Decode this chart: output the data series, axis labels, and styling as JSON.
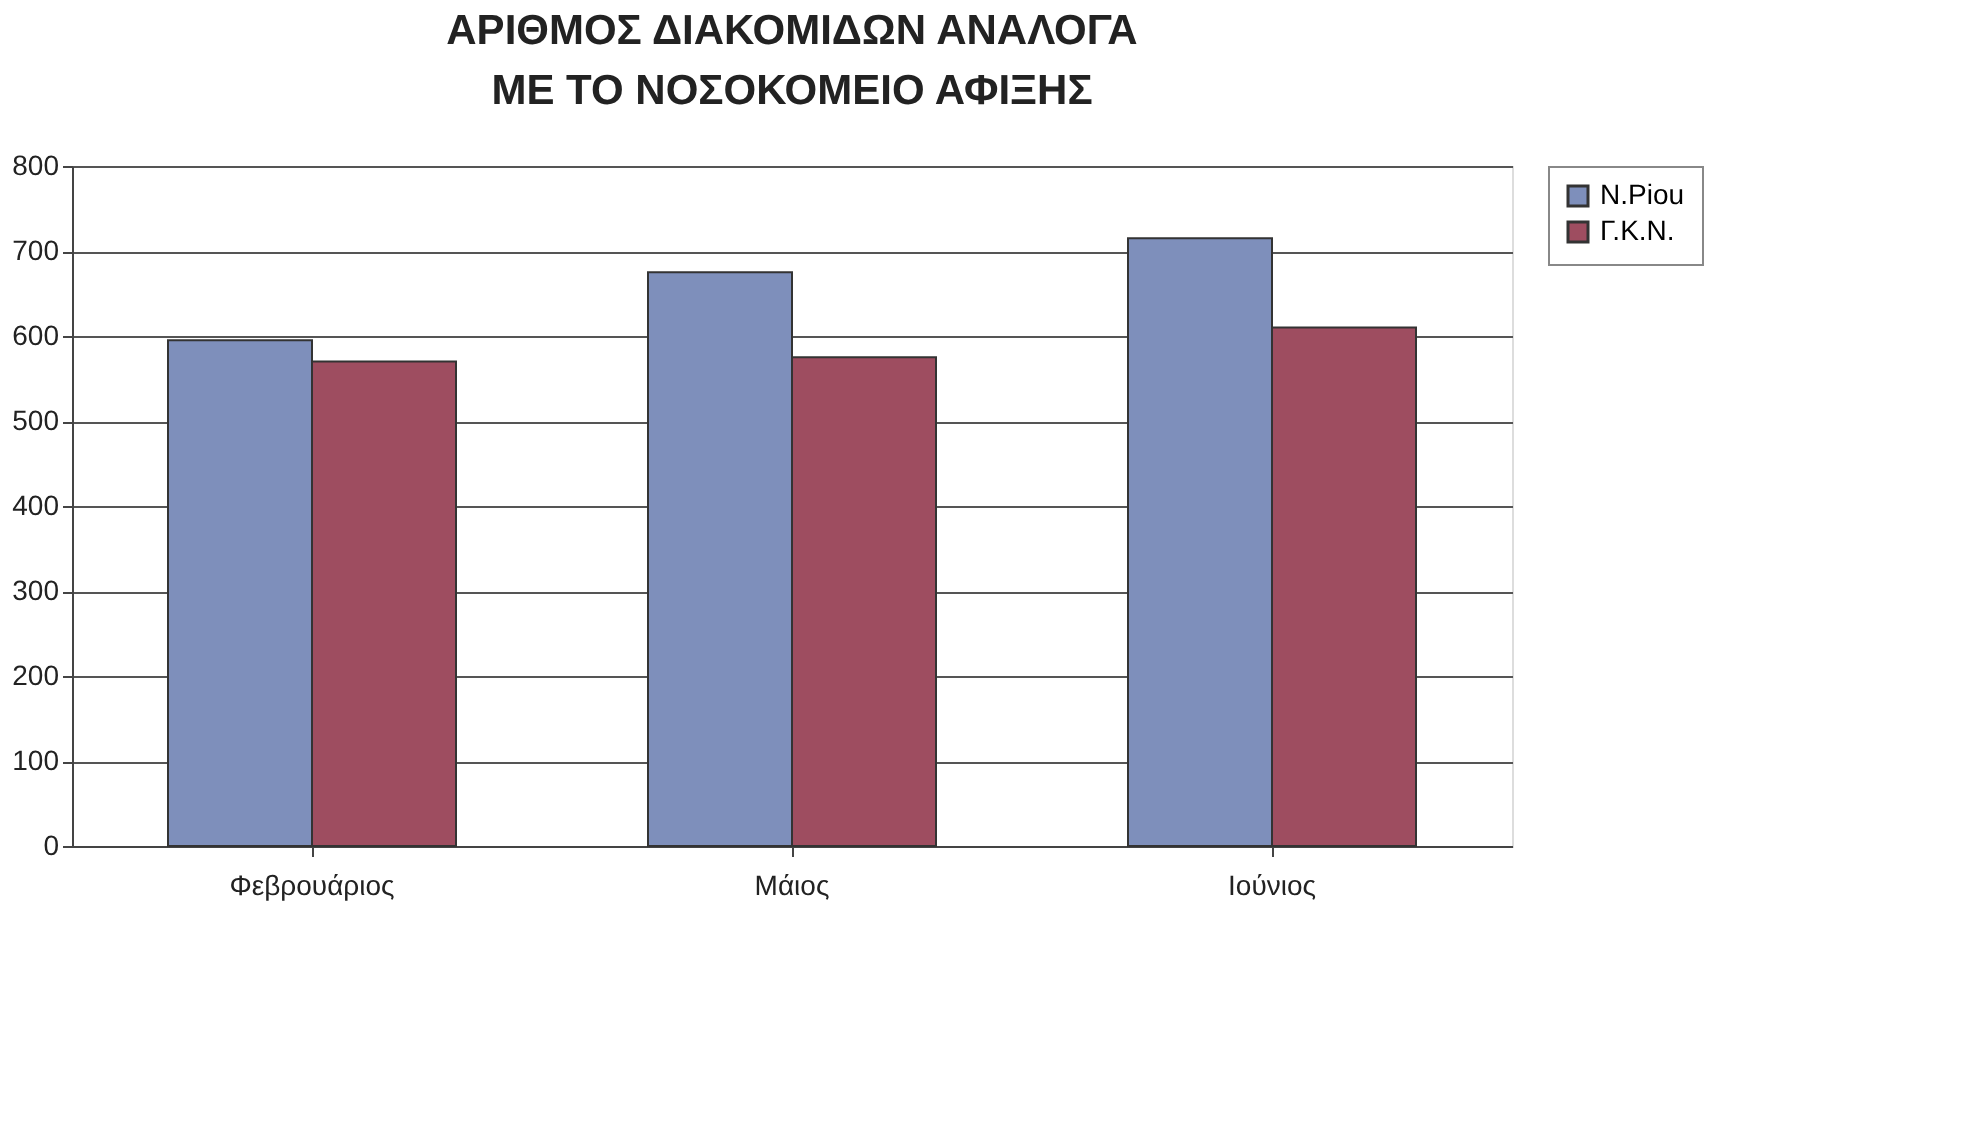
{
  "chart_data": {
    "type": "bar",
    "title": "ΑΡΙΘΜΟΣ ΔΙΑΚΟΜΙΔΩΝ ΑΝΑΛΟΓΑ ΜΕ ΤΟ ΝΟΣΟΚΟΜΕΙΟ ΑΦΙΞΗΣ",
    "categories": [
      "Φεβρουάριος",
      "Μάιος",
      "Ιούνιος"
    ],
    "series": [
      {
        "name": "N.Piou",
        "color": "#7e8fbb",
        "values": [
          595,
          675,
          715
        ]
      },
      {
        "name": "Γ.Κ.Ν.",
        "color": "#9e4d60",
        "values": [
          570,
          575,
          610
        ]
      }
    ],
    "ylim": [
      0,
      800
    ],
    "yticks": [
      0,
      100,
      200,
      300,
      400,
      500,
      600,
      700,
      800
    ],
    "grid": "y",
    "legend": "right"
  }
}
